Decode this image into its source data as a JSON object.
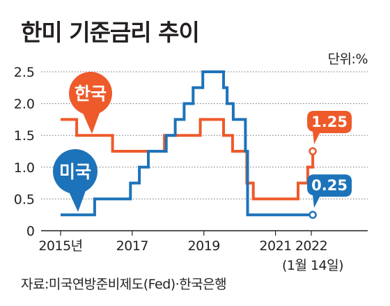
{
  "title": "한미 기준금리 추이",
  "unit": "단위:%",
  "source": "자료:미국연방준비제도(Fed)·한국은행",
  "colors": {
    "korea": "#ee5a2a",
    "us": "#1d73b9",
    "grid": "#6d6e70",
    "axis": "#231f20"
  },
  "chart_data": {
    "type": "line",
    "step": true,
    "ylim": [
      0,
      2.5
    ],
    "yticks": [
      "0",
      "0.5",
      "1.0",
      "1.5",
      "2.0",
      "2.5"
    ],
    "xlim": [
      2014.95,
      2023.4
    ],
    "xticks": [
      {
        "x": 2015,
        "label": "2015년"
      },
      {
        "x": 2017,
        "label": "2017"
      },
      {
        "x": 2019,
        "label": "2019"
      },
      {
        "x": 2021,
        "label": "2021"
      },
      {
        "x": 2022,
        "label": "2022"
      }
    ],
    "x_note": "(1월 14일)",
    "grid": "horizontal-dotted",
    "series": [
      {
        "name": "한국",
        "color": "#ee5a2a",
        "end_label": "1.25",
        "points": [
          [
            2015.0,
            1.75
          ],
          [
            2015.45,
            1.75
          ],
          [
            2015.45,
            1.5
          ],
          [
            2016.45,
            1.5
          ],
          [
            2016.45,
            1.25
          ],
          [
            2017.9,
            1.25
          ],
          [
            2017.9,
            1.5
          ],
          [
            2018.9,
            1.5
          ],
          [
            2018.9,
            1.75
          ],
          [
            2019.55,
            1.75
          ],
          [
            2019.55,
            1.5
          ],
          [
            2019.8,
            1.5
          ],
          [
            2019.8,
            1.25
          ],
          [
            2020.2,
            1.25
          ],
          [
            2020.2,
            0.75
          ],
          [
            2020.38,
            0.75
          ],
          [
            2020.38,
            0.5
          ],
          [
            2021.63,
            0.5
          ],
          [
            2021.63,
            0.75
          ],
          [
            2021.9,
            0.75
          ],
          [
            2021.9,
            1.0
          ],
          [
            2022.04,
            1.0
          ],
          [
            2022.04,
            1.25
          ]
        ]
      },
      {
        "name": "미국",
        "color": "#1d73b9",
        "end_label": "0.25",
        "points": [
          [
            2015.0,
            0.25
          ],
          [
            2015.95,
            0.25
          ],
          [
            2015.95,
            0.5
          ],
          [
            2016.95,
            0.5
          ],
          [
            2016.95,
            0.75
          ],
          [
            2017.2,
            0.75
          ],
          [
            2017.2,
            1.0
          ],
          [
            2017.45,
            1.0
          ],
          [
            2017.45,
            1.25
          ],
          [
            2017.95,
            1.25
          ],
          [
            2017.95,
            1.5
          ],
          [
            2018.2,
            1.5
          ],
          [
            2018.2,
            1.75
          ],
          [
            2018.45,
            1.75
          ],
          [
            2018.45,
            2.0
          ],
          [
            2018.7,
            2.0
          ],
          [
            2018.7,
            2.25
          ],
          [
            2018.97,
            2.25
          ],
          [
            2018.97,
            2.5
          ],
          [
            2019.55,
            2.5
          ],
          [
            2019.55,
            2.25
          ],
          [
            2019.65,
            2.25
          ],
          [
            2019.65,
            2.0
          ],
          [
            2019.82,
            2.0
          ],
          [
            2019.82,
            1.75
          ],
          [
            2020.16,
            1.75
          ],
          [
            2020.16,
            1.25
          ],
          [
            2020.22,
            1.25
          ],
          [
            2020.22,
            0.25
          ],
          [
            2022.04,
            0.25
          ]
        ]
      }
    ]
  }
}
